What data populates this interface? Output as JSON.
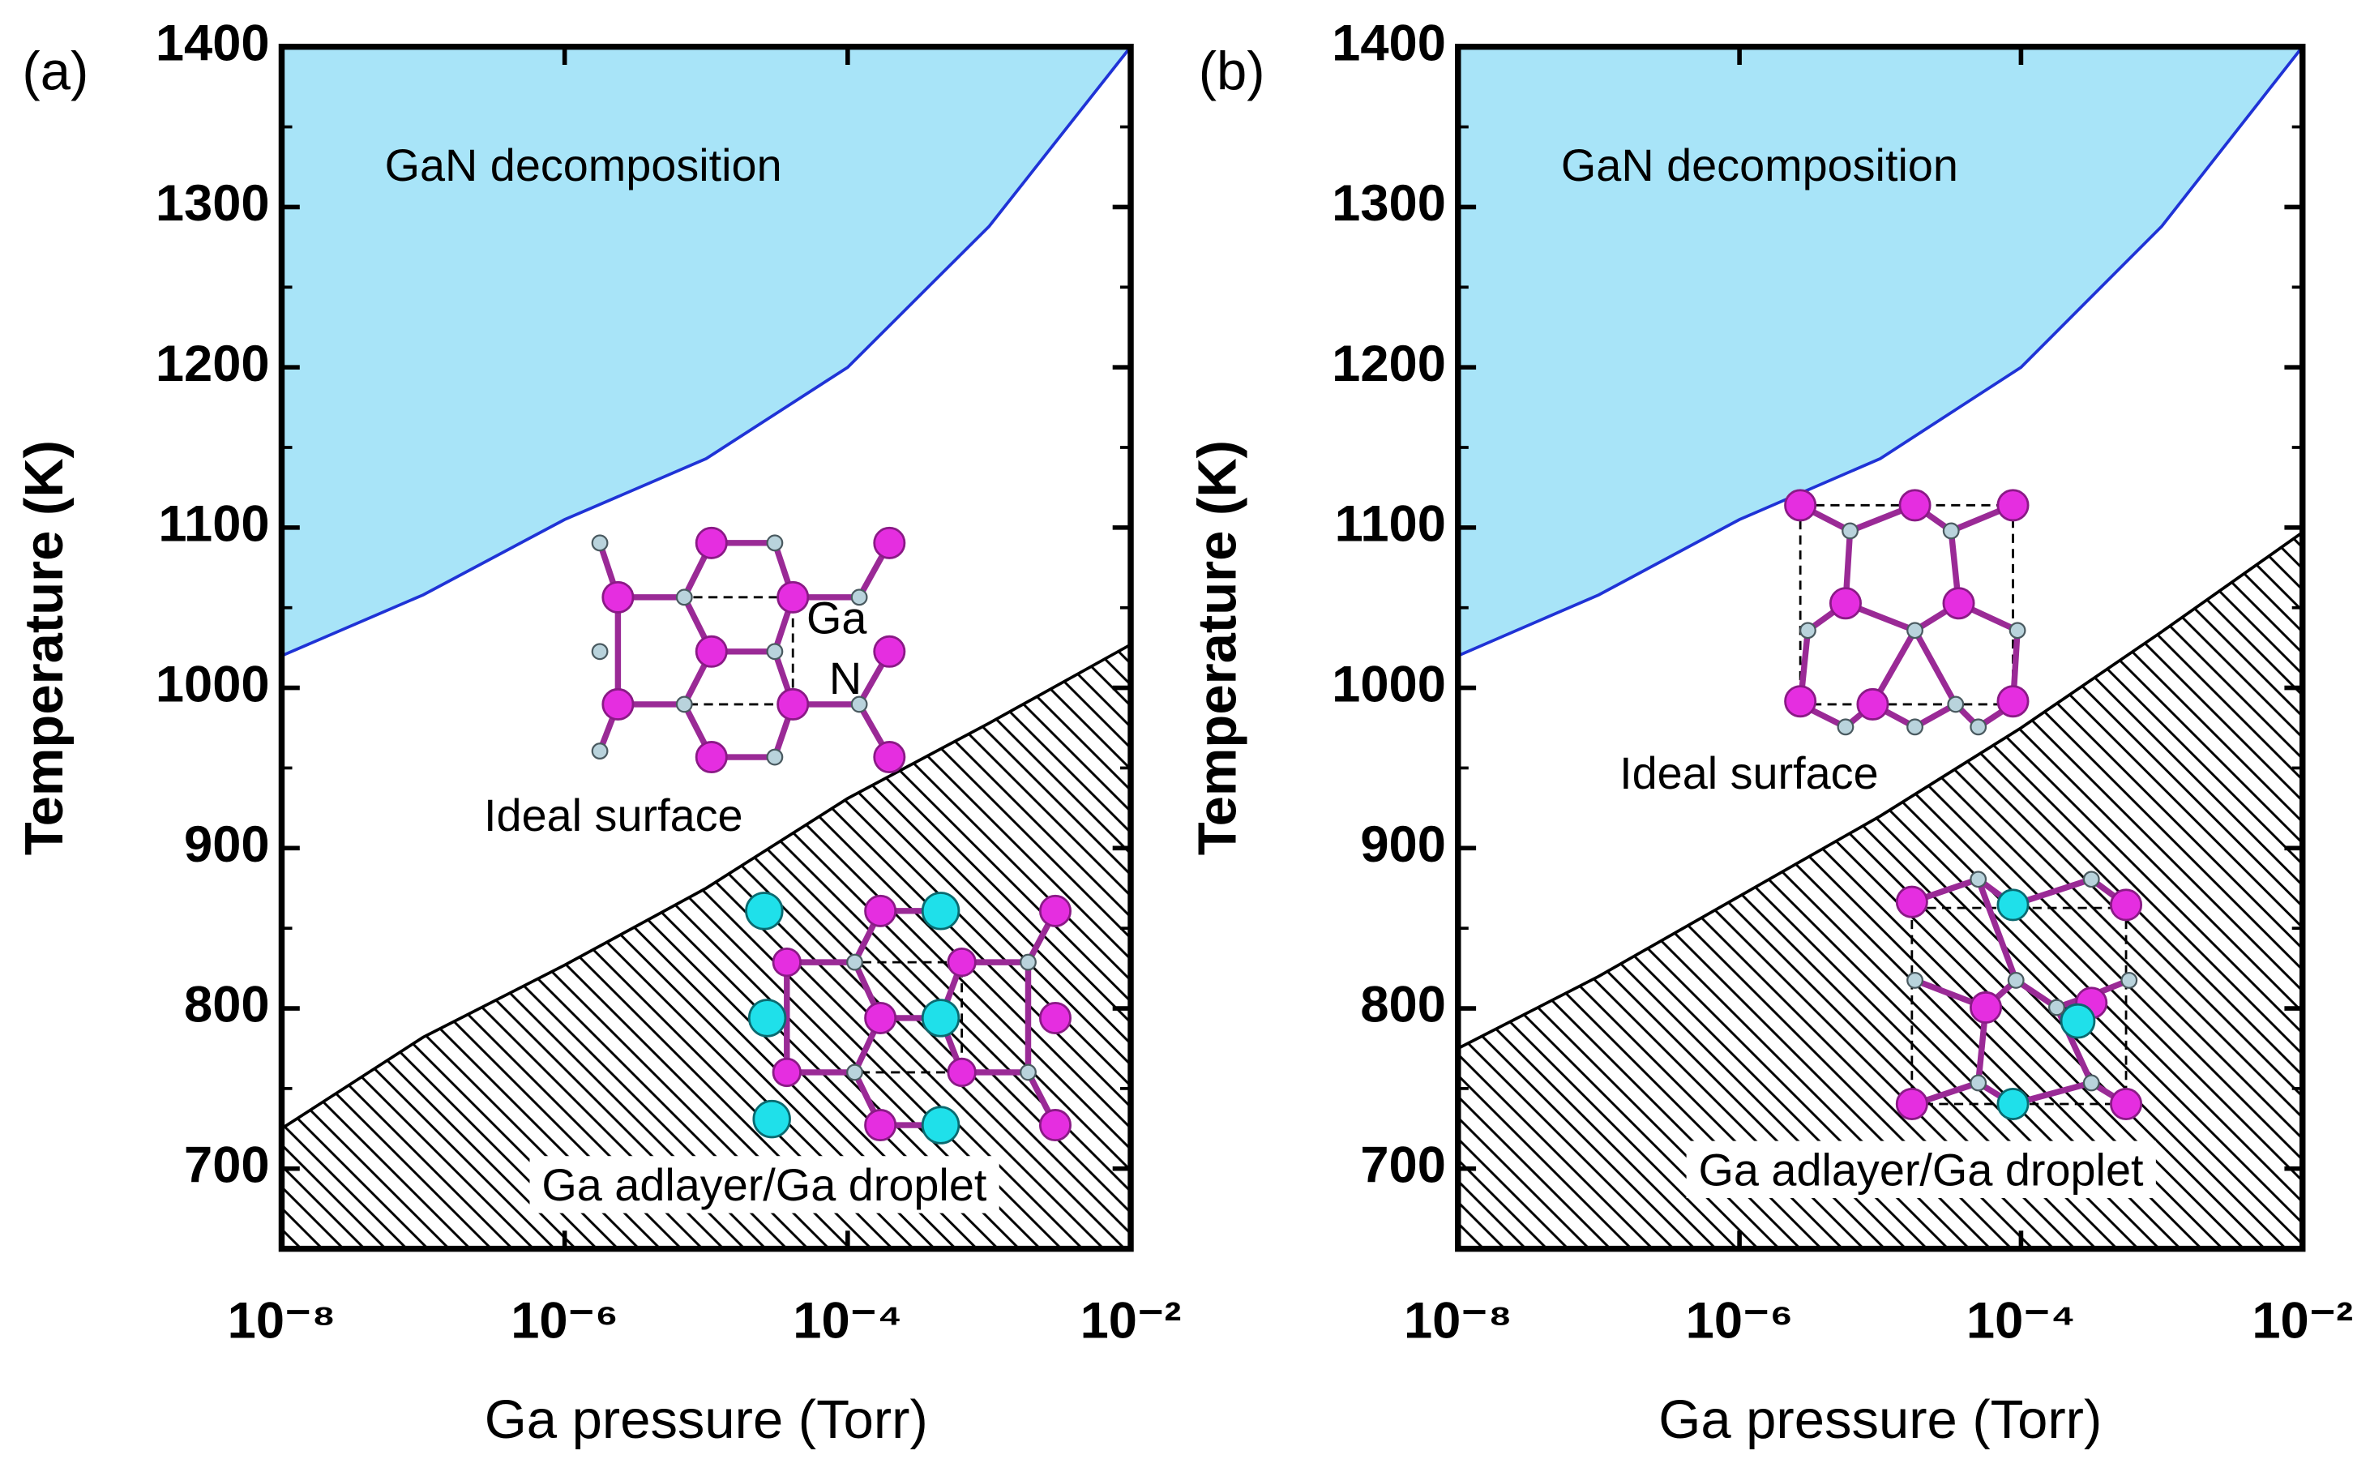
{
  "chart_data": [
    {
      "type": "line",
      "panel_label": "(a)",
      "xlabel": "Ga pressure (Torr)",
      "ylabel": "Temperature (K)",
      "x": [
        1e-08,
        1e-07,
        1e-06,
        1e-05,
        0.0001,
        0.001,
        0.01
      ],
      "xscale": "log",
      "xlim": [
        1e-08,
        0.01
      ],
      "xticks": [
        {
          "value": 1e-08,
          "label": "10⁻⁸"
        },
        {
          "value": 1e-06,
          "label": "10⁻⁶"
        },
        {
          "value": 0.0001,
          "label": "10⁻⁴"
        },
        {
          "value": 0.01,
          "label": "10⁻²"
        }
      ],
      "ylim": [
        650,
        1400
      ],
      "yticks": [
        700,
        800,
        900,
        1000,
        1100,
        1200,
        1300,
        1400
      ],
      "series": [
        {
          "color": "#1f33d6",
          "fill_color": "#a8e4f8",
          "fill_side": "above",
          "values": [
            1020,
            1058,
            1105,
            1143,
            1200,
            1288,
            1400
          ]
        },
        {
          "color": "#000000",
          "fill_side": "below",
          "hatch": true,
          "values": [
            725,
            782,
            827,
            875,
            931,
            978,
            1027
          ]
        }
      ],
      "annotations": [
        "GaN decomposition",
        "Ideal surface",
        "Ga adlayer/Ga droplet",
        "Ga",
        "N"
      ]
    },
    {
      "type": "line",
      "panel_label": "(b)",
      "xlabel": "Ga pressure (Torr)",
      "ylabel": "Temperature (K)",
      "x": [
        1e-08,
        1e-07,
        1e-06,
        1e-05,
        0.0001,
        0.001,
        0.01
      ],
      "xscale": "log",
      "xlim": [
        1e-08,
        0.01
      ],
      "xticks": [
        {
          "value": 1e-08,
          "label": "10⁻⁸"
        },
        {
          "value": 1e-06,
          "label": "10⁻⁶"
        },
        {
          "value": 0.0001,
          "label": "10⁻⁴"
        },
        {
          "value": 0.01,
          "label": "10⁻²"
        }
      ],
      "ylim": [
        650,
        1400
      ],
      "yticks": [
        700,
        800,
        900,
        1000,
        1100,
        1200,
        1300,
        1400
      ],
      "series": [
        {
          "color": "#1f33d6",
          "fill_color": "#a8e4f8",
          "fill_side": "above",
          "values": [
            1020,
            1058,
            1105,
            1143,
            1200,
            1288,
            1400
          ]
        },
        {
          "color": "#000000",
          "fill_side": "below",
          "hatch": true,
          "values": [
            775,
            820,
            870,
            920,
            975,
            1035,
            1097
          ]
        }
      ],
      "annotations": [
        "GaN decomposition",
        "Ideal surface",
        "Ga adlayer/Ga droplet"
      ]
    }
  ]
}
